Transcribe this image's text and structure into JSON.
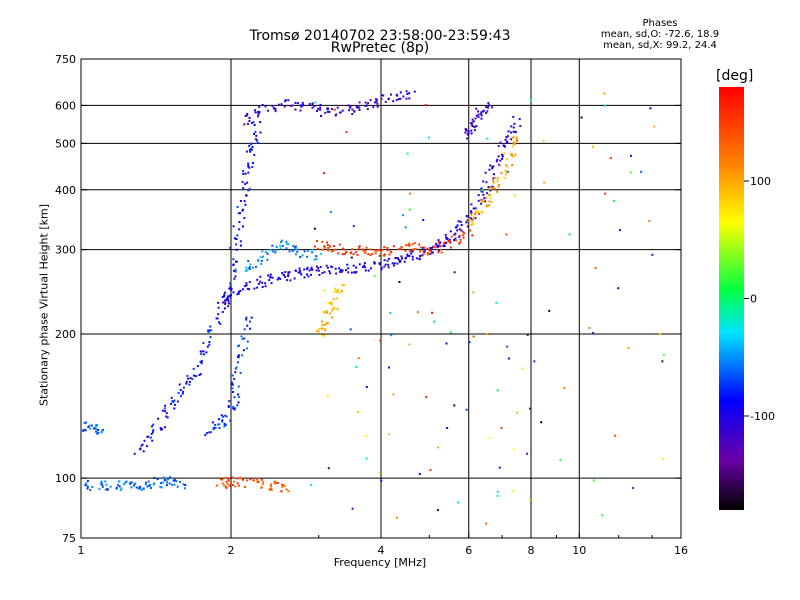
{
  "chart_data": {
    "type": "scatter",
    "title": "Tromsø 20140702 23:58:00-23:59:43",
    "subtitle": "RwPretec (8p)",
    "stats": {
      "header": "Phases",
      "line_o": "mean, sd,O: -72.6, 18.9",
      "line_x": "mean, sd,X:  99.2, 24.4"
    },
    "xlabel": "Frequency [MHz]",
    "ylabel": "Stationary phase Virtual Height [km]",
    "x_scale": "log",
    "y_scale": "log",
    "xlim": [
      1,
      16
    ],
    "ylim": [
      75,
      750
    ],
    "x_ticks": [
      1,
      2,
      4,
      6,
      8,
      10,
      16
    ],
    "x_tick_labels": [
      "1",
      "2",
      "4",
      "6",
      "8",
      "10",
      "16"
    ],
    "y_ticks": [
      75,
      100,
      200,
      300,
      400,
      500,
      600,
      750
    ],
    "y_tick_labels": [
      "75",
      "100",
      "200",
      "300",
      "400",
      "500",
      "600",
      "750"
    ],
    "x_gridlines": [
      2,
      4,
      6,
      8,
      10
    ],
    "y_gridlines": [
      100,
      200,
      300,
      400,
      500,
      600
    ],
    "colorbar": {
      "label": "[deg]",
      "range": [
        -180,
        180
      ],
      "ticks": [
        100,
        0,
        -100
      ],
      "tick_labels": [
        "100",
        "0",
        "-100"
      ]
    },
    "series": [
      {
        "trace": [
          [
            1.0,
            97
          ],
          [
            1.1,
            97
          ],
          [
            1.2,
            97
          ],
          [
            1.3,
            97
          ],
          [
            1.4,
            98
          ],
          [
            1.5,
            99
          ],
          [
            1.6,
            97
          ]
        ],
        "phase": -60
      },
      {
        "trace": [
          [
            1.0,
            130
          ],
          [
            1.05,
            128
          ],
          [
            1.1,
            125
          ]
        ],
        "phase": -60
      },
      {
        "trace": [
          [
            1.3,
            115
          ],
          [
            1.4,
            125
          ],
          [
            1.5,
            140
          ],
          [
            1.6,
            155
          ],
          [
            1.7,
            170
          ],
          [
            1.8,
            195
          ],
          [
            1.9,
            230
          ],
          [
            2.0,
            270
          ],
          [
            2.05,
            320
          ],
          [
            2.1,
            380
          ],
          [
            2.15,
            440
          ],
          [
            2.2,
            500
          ],
          [
            2.25,
            560
          ]
        ],
        "phase": -85
      },
      {
        "trace": [
          [
            1.8,
            125
          ],
          [
            1.9,
            130
          ],
          [
            2.0,
            140
          ],
          [
            2.05,
            160
          ],
          [
            2.1,
            190
          ],
          [
            2.15,
            220
          ]
        ],
        "phase": -75
      },
      {
        "trace": [
          [
            1.9,
            230
          ],
          [
            2.0,
            245
          ],
          [
            2.2,
            255
          ],
          [
            2.4,
            262
          ],
          [
            2.6,
            266
          ],
          [
            2.8,
            270
          ],
          [
            3.0,
            272
          ],
          [
            3.3,
            274
          ],
          [
            3.6,
            276
          ],
          [
            4.0,
            280
          ],
          [
            4.3,
            285
          ],
          [
            4.6,
            292
          ],
          [
            5.0,
            300
          ],
          [
            5.3,
            310
          ],
          [
            5.6,
            325
          ],
          [
            5.9,
            345
          ],
          [
            6.2,
            370
          ],
          [
            6.5,
            410
          ],
          [
            6.8,
            460
          ],
          [
            7.2,
            520
          ],
          [
            7.5,
            560
          ]
        ],
        "phase": -100
      },
      {
        "trace": [
          [
            2.1,
            560
          ],
          [
            2.3,
            590
          ],
          [
            2.6,
            605
          ],
          [
            2.9,
            595
          ],
          [
            3.2,
            580
          ],
          [
            3.5,
            595
          ],
          [
            3.8,
            610
          ],
          [
            4.2,
            625
          ],
          [
            4.6,
            640
          ]
        ],
        "phase": -110
      },
      {
        "trace": [
          [
            2.1,
            270
          ],
          [
            2.3,
            290
          ],
          [
            2.5,
            310
          ],
          [
            2.7,
            300
          ],
          [
            3.0,
            290
          ]
        ],
        "phase": -55
      },
      {
        "trace": [
          [
            1.9,
            97
          ],
          [
            2.0,
            99
          ],
          [
            2.2,
            98
          ],
          [
            2.4,
            97
          ],
          [
            2.6,
            96
          ]
        ],
        "phase": 140
      },
      {
        "trace": [
          [
            3.0,
            310
          ],
          [
            3.2,
            305
          ],
          [
            3.5,
            300
          ],
          [
            3.8,
            298
          ],
          [
            4.2,
            300
          ],
          [
            4.6,
            305
          ],
          [
            5.0,
            300
          ],
          [
            5.5,
            310
          ],
          [
            6.0,
            330
          ]
        ],
        "phase": 150
      },
      {
        "trace": [
          [
            3.0,
            200
          ],
          [
            3.1,
            215
          ],
          [
            3.2,
            235
          ],
          [
            3.3,
            255
          ]
        ],
        "phase": 95
      },
      {
        "trace": [
          [
            6.0,
            340
          ],
          [
            6.3,
            360
          ],
          [
            6.6,
            390
          ],
          [
            6.9,
            420
          ],
          [
            7.2,
            470
          ],
          [
            7.4,
            520
          ]
        ],
        "phase": 100
      },
      {
        "trace": [
          [
            5.9,
            520
          ],
          [
            6.1,
            540
          ],
          [
            6.3,
            580
          ],
          [
            6.6,
            600
          ]
        ],
        "phase": -110
      }
    ]
  }
}
